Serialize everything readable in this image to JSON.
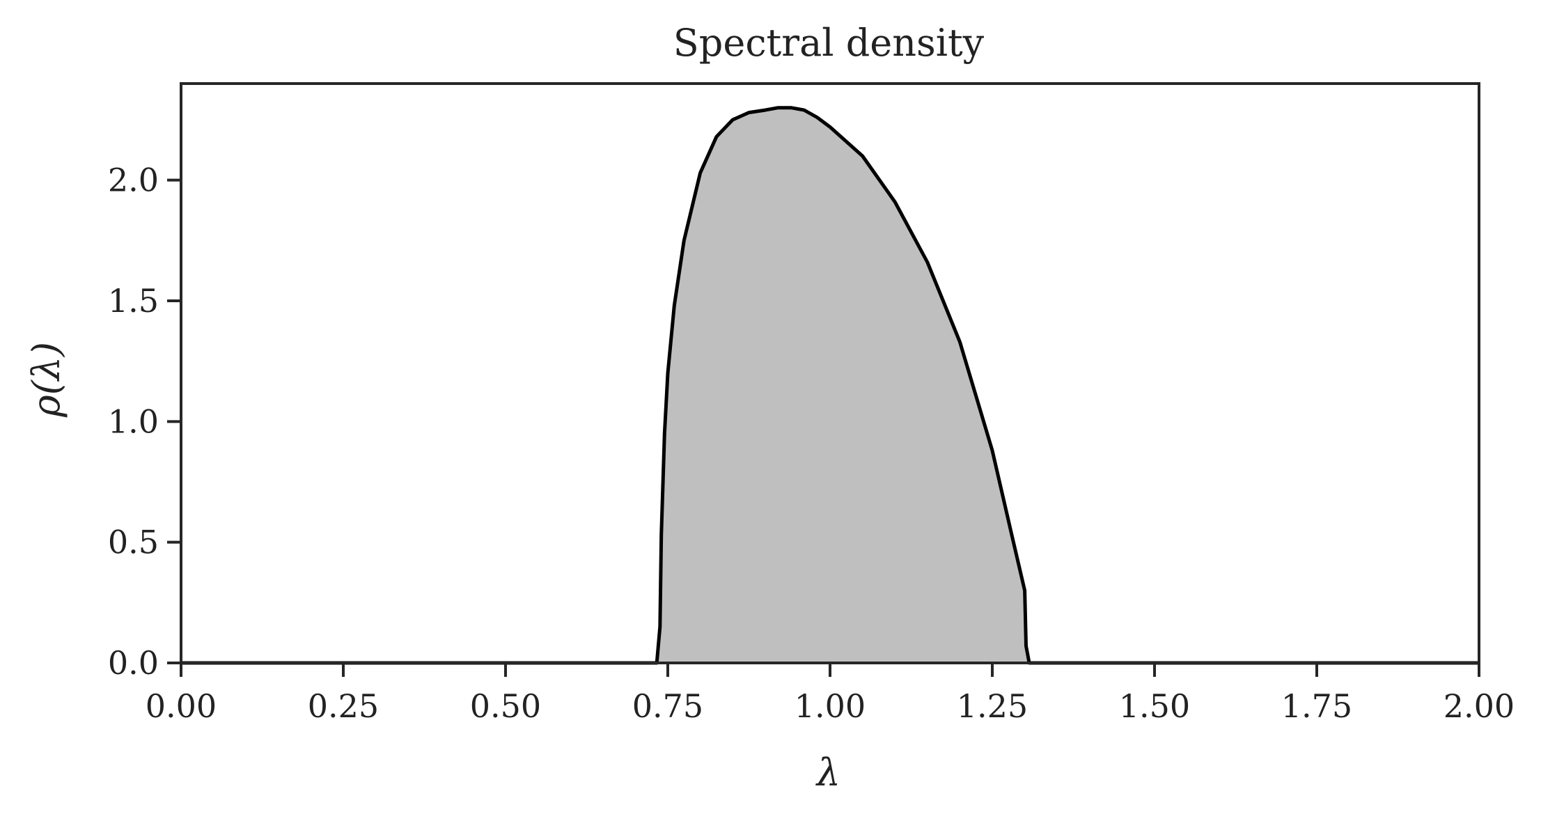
{
  "chart_data": {
    "type": "area",
    "title": "Spectral density",
    "xlabel": "λ",
    "ylabel": "ρ(λ)",
    "xlim": [
      0.0,
      2.0
    ],
    "ylim": [
      0.0,
      2.4
    ],
    "x_ticks": [
      "0.00",
      "0.25",
      "0.50",
      "0.75",
      "1.00",
      "1.25",
      "1.50",
      "1.75",
      "2.00"
    ],
    "y_ticks": [
      "0.0",
      "0.5",
      "1.0",
      "1.5",
      "2.0"
    ],
    "grid": false,
    "legend": "none",
    "series": [
      {
        "fill_color": "#bfbfbf",
        "line_color": "#000000",
        "x": [
          0.0,
          0.733,
          0.738,
          0.74,
          0.745,
          0.75,
          0.76,
          0.775,
          0.8,
          0.825,
          0.85,
          0.875,
          0.9,
          0.92,
          0.94,
          0.96,
          0.98,
          1.0,
          1.05,
          1.1,
          1.15,
          1.2,
          1.25,
          1.28,
          1.3,
          1.302,
          1.307,
          2.0
        ],
        "y": [
          0.0,
          0.0,
          0.15,
          0.53,
          0.95,
          1.2,
          1.48,
          1.75,
          2.03,
          2.18,
          2.25,
          2.28,
          2.29,
          2.3,
          2.3,
          2.29,
          2.26,
          2.22,
          2.1,
          1.91,
          1.66,
          1.33,
          0.88,
          0.53,
          0.3,
          0.07,
          0.0,
          0.0
        ]
      }
    ]
  }
}
